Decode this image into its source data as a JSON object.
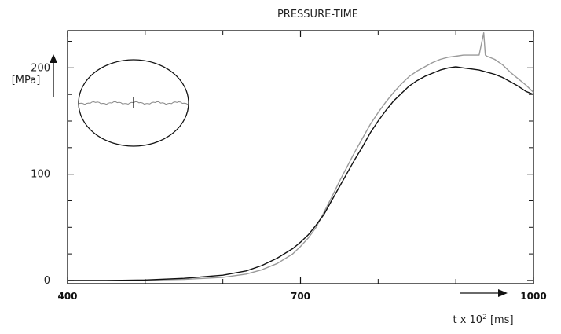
{
  "chart_data": {
    "type": "line",
    "title": "PRESSURE-TIME",
    "ylabel_unit": "[MPa]",
    "xlabel": {
      "prefix": "t x 10",
      "sup": "2",
      "suffix": " [ms]"
    },
    "xlim": [
      400,
      1000
    ],
    "ylim": [
      -3,
      235
    ],
    "x_tick_labels": [
      "400",
      "700",
      "1000"
    ],
    "y_tick_labels": [
      "0",
      "100",
      "200"
    ],
    "x_tick_values": [
      400,
      700,
      1000
    ],
    "y_tick_values": [
      0,
      100,
      200
    ],
    "x_minor_ticks": [
      500,
      600,
      800,
      900
    ],
    "y_minor_ticks": [
      25,
      50,
      75,
      125,
      150,
      175,
      225
    ],
    "grid": false,
    "legend": "none",
    "series": [
      {
        "color": "#111111",
        "x": [
          400,
          450,
          500,
          550,
          600,
          630,
          650,
          670,
          690,
          700,
          710,
          720,
          730,
          740,
          750,
          760,
          770,
          780,
          790,
          800,
          810,
          820,
          830,
          840,
          850,
          860,
          870,
          880,
          890,
          900,
          910,
          920,
          930,
          940,
          950,
          960,
          970,
          980,
          990,
          1000
        ],
        "y": [
          0,
          0,
          0.5,
          2,
          5,
          9,
          14,
          21,
          30,
          36,
          43,
          52,
          62,
          75,
          88,
          101,
          114,
          126,
          139,
          150,
          160,
          169,
          176,
          183,
          188,
          192,
          195,
          198,
          200,
          201,
          200,
          199,
          198,
          196,
          194,
          191,
          187,
          183,
          178,
          175
        ]
      },
      {
        "color": "#9a9a9a",
        "x": [
          400,
          450,
          500,
          550,
          600,
          630,
          650,
          670,
          690,
          700,
          710,
          720,
          730,
          740,
          750,
          760,
          770,
          780,
          790,
          800,
          810,
          820,
          830,
          840,
          850,
          860,
          870,
          880,
          890,
          900,
          910,
          920,
          930,
          936,
          938,
          940,
          950,
          960,
          970,
          980,
          990,
          1000
        ],
        "y": [
          0,
          0,
          0.3,
          1,
          3,
          6,
          10,
          16,
          25,
          32,
          40,
          50,
          64,
          78,
          93,
          107,
          121,
          134,
          147,
          158,
          168,
          177,
          185,
          192,
          197,
          201,
          205,
          208,
          210,
          211,
          212,
          212,
          212,
          233,
          212,
          211,
          208,
          203,
          196,
          190,
          184,
          177
        ]
      }
    ],
    "inset": {
      "shape": "ellipse",
      "description": "zoomed detail view"
    }
  }
}
